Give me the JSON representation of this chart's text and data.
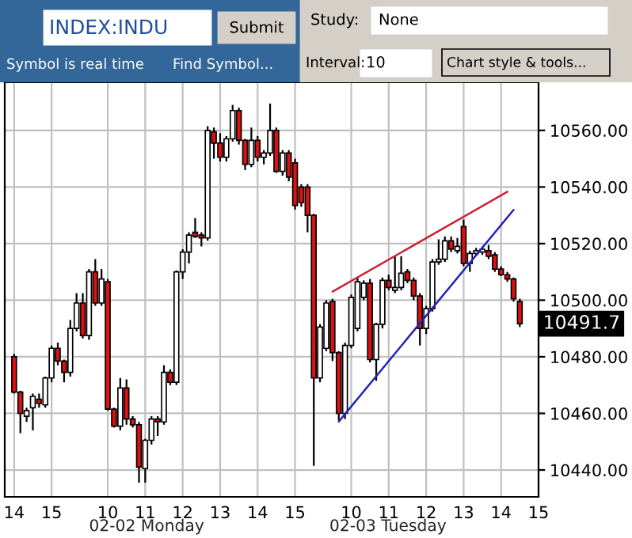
{
  "chart_data": {
    "type": "candlestick",
    "categories": [
      "14",
      null,
      null,
      null,
      null,
      null,
      "15",
      null,
      null,
      null,
      null,
      null,
      null,
      null,
      null,
      "10",
      null,
      null,
      null,
      null,
      null,
      "11",
      null,
      null,
      null,
      null,
      null,
      "12",
      null,
      null,
      null,
      null,
      null,
      "13",
      null,
      null,
      null,
      null,
      null,
      "14",
      null,
      null,
      null,
      null,
      null,
      "15",
      null,
      null,
      null,
      null,
      null,
      null,
      null,
      null,
      "10",
      null,
      null,
      null,
      null,
      null,
      "11",
      null,
      null,
      null,
      null,
      null,
      "12",
      null,
      null,
      null,
      null,
      null,
      "13",
      null,
      null,
      null,
      null,
      null,
      "14",
      null,
      null,
      null,
      null,
      null,
      "15"
    ],
    "ohlc": [
      [
        10480,
        10481,
        10467,
        10467.5
      ],
      [
        10467.5,
        10468,
        10453,
        10460
      ],
      [
        10459,
        10462,
        10457,
        10461
      ],
      [
        10462,
        10467,
        10454,
        10466
      ],
      [
        10465,
        10467,
        10462,
        10463.5
      ],
      [
        10463,
        10473,
        10462,
        10472.5
      ],
      [
        10472.5,
        10484,
        10471,
        10483
      ],
      [
        10483,
        10485,
        10477,
        10478.5
      ],
      [
        10478.5,
        10479,
        10471,
        10474.5
      ],
      [
        10474.5,
        10493,
        10473,
        10490
      ],
      [
        10490,
        10502.5,
        10489,
        10499
      ],
      [
        10499,
        10502.5,
        10486.5,
        10487.5
      ],
      [
        10487.5,
        10511,
        10486,
        10510
      ],
      [
        10510,
        10514.5,
        10498,
        10499
      ],
      [
        10499,
        10511,
        10498,
        10507.5
      ],
      [
        10506.5,
        10507.5,
        10461,
        10461.5
      ],
      [
        10461.5,
        10462,
        10455,
        10455.5
      ],
      [
        10455.5,
        10472.5,
        10454,
        10469
      ],
      [
        10469,
        10472,
        10456,
        10458
      ],
      [
        10458,
        10459,
        10455,
        10456
      ],
      [
        10456,
        10457,
        10435.5,
        10441
      ],
      [
        10440.5,
        10451,
        10435.5,
        10450.5
      ],
      [
        10450.5,
        10459,
        10449,
        10458
      ],
      [
        10458,
        10459,
        10452,
        10457
      ],
      [
        10457,
        10477,
        10456,
        10474.5
      ],
      [
        10474.5,
        10475.5,
        10470,
        10471
      ],
      [
        10471,
        10510.5,
        10470,
        10510
      ],
      [
        10510,
        10518,
        10507.5,
        10517
      ],
      [
        10517,
        10524,
        10513,
        10523
      ],
      [
        10524,
        10529,
        10522,
        10522.5
      ],
      [
        10523,
        10524,
        10519,
        10522
      ],
      [
        10522,
        10561.5,
        10521,
        10560
      ],
      [
        10559.5,
        10561,
        10550,
        10555.5
      ],
      [
        10555.5,
        10559,
        10549,
        10550.5
      ],
      [
        10550.5,
        10558,
        10549,
        10557
      ],
      [
        10557,
        10569,
        10556,
        10567
      ],
      [
        10567,
        10568,
        10555,
        10556.5
      ],
      [
        10556.5,
        10557,
        10546,
        10548
      ],
      [
        10548,
        10561,
        10547,
        10556.5
      ],
      [
        10556.5,
        10558,
        10549,
        10550.5
      ],
      [
        10550.5,
        10553,
        10548,
        10552
      ],
      [
        10552,
        10569.5,
        10551,
        10560
      ],
      [
        10560,
        10561,
        10545,
        10545.5
      ],
      [
        10545.5,
        10553,
        10544,
        10552
      ],
      [
        10552,
        10553,
        10542,
        10543.5
      ],
      [
        10548.5,
        10550,
        10532,
        10533.5
      ],
      [
        10540,
        10541,
        10533,
        10534.5
      ],
      [
        10540,
        10541,
        10524,
        10530
      ],
      [
        10530,
        10530.5,
        10441.5,
        10472.5
      ],
      [
        10472.5,
        10491.5,
        10471,
        10490.5
      ],
      [
        10483,
        10500,
        10482,
        10499
      ],
      [
        10499.5,
        10500.5,
        10478.5,
        10481.5
      ],
      [
        10481.5,
        10482,
        10457.5,
        10460
      ],
      [
        10460,
        10485,
        10458,
        10484
      ],
      [
        10484,
        10502,
        10483,
        10501
      ],
      [
        10490,
        10508,
        10489,
        10506.5
      ],
      [
        10501,
        10507,
        10500,
        10506
      ],
      [
        10506,
        10507.5,
        10478,
        10479
      ],
      [
        10479,
        10492,
        10471.5,
        10491.5
      ],
      [
        10491.5,
        10508,
        10490,
        10507
      ],
      [
        10507,
        10509,
        10503.5,
        10504.5
      ],
      [
        10503.5,
        10515.5,
        10502.5,
        10504.5
      ],
      [
        10504.5,
        10515.5,
        10503.5,
        10509.5
      ],
      [
        10510,
        10511,
        10506,
        10507
      ],
      [
        10507,
        10508,
        10500,
        10501.5
      ],
      [
        10501.5,
        10502.5,
        10484,
        10490
      ],
      [
        10490,
        10498,
        10488,
        10497
      ],
      [
        10497,
        10514.5,
        10496,
        10513.5
      ],
      [
        10513.5,
        10521.5,
        10512.5,
        10514.5
      ],
      [
        10514.5,
        10522.5,
        10513.5,
        10521
      ],
      [
        10521,
        10522.5,
        10517,
        10518
      ],
      [
        10517.5,
        10522,
        10516.5,
        10519
      ],
      [
        10526,
        10528.5,
        10512,
        10513
      ],
      [
        10513,
        10517.5,
        10510,
        10516.5
      ],
      [
        10516.5,
        10518.5,
        10515.5,
        10517.5
      ],
      [
        10517,
        10519,
        10516,
        10518
      ],
      [
        10517.5,
        10519.5,
        10514.5,
        10515.5
      ],
      [
        10516,
        10517,
        10510,
        10511
      ],
      [
        10511,
        10512,
        10508.5,
        10509
      ],
      [
        10509,
        10510,
        10506.5,
        10507.5
      ],
      [
        10507.5,
        10508,
        10499.5,
        10500.5
      ],
      [
        10499.5,
        10500.5,
        10490.5,
        10491.7
      ],
      null,
      null,
      null
    ],
    "series": [
      {
        "type": "line",
        "color": "#cc2233",
        "values": [
          null,
          null,
          null,
          null,
          null,
          null,
          null,
          null,
          null,
          null,
          null,
          null,
          null,
          null,
          null,
          null,
          null,
          null,
          null,
          null,
          null,
          null,
          null,
          null,
          null,
          null,
          null,
          null,
          null,
          null,
          null,
          null,
          null,
          null,
          null,
          null,
          null,
          null,
          null,
          null,
          null,
          null,
          null,
          null,
          null,
          null,
          null,
          null,
          null,
          null,
          null,
          10503,
          null,
          null,
          null,
          null,
          null,
          null,
          null,
          null,
          null,
          null,
          null,
          null,
          null,
          null,
          null,
          null,
          null,
          null,
          null,
          null,
          null,
          null,
          null,
          null,
          null,
          null,
          null,
          10538.3,
          null,
          null,
          null,
          null,
          null
        ]
      },
      {
        "type": "line",
        "color": "#2222bb",
        "values": [
          null,
          null,
          null,
          null,
          null,
          null,
          null,
          null,
          null,
          null,
          null,
          null,
          null,
          null,
          null,
          null,
          null,
          null,
          null,
          null,
          null,
          null,
          null,
          null,
          null,
          null,
          null,
          null,
          null,
          null,
          null,
          null,
          null,
          null,
          null,
          null,
          null,
          null,
          null,
          null,
          null,
          null,
          null,
          null,
          null,
          null,
          null,
          null,
          null,
          null,
          null,
          null,
          10457.1,
          null,
          null,
          null,
          null,
          null,
          null,
          null,
          null,
          null,
          null,
          null,
          null,
          null,
          null,
          null,
          null,
          null,
          null,
          null,
          null,
          null,
          null,
          null,
          null,
          null,
          null,
          null,
          10531.9,
          null,
          null,
          null,
          null
        ]
      }
    ],
    "ylim": [
      10430.5,
      10577
    ],
    "yticks": [
      {
        "value": 10440,
        "label": "10440.00"
      },
      {
        "value": 10460,
        "label": "10460.00"
      },
      {
        "value": 10480,
        "label": "10480.00"
      },
      {
        "value": 10500,
        "label": "10500.00"
      },
      {
        "value": 10520,
        "label": "10520.00"
      },
      {
        "value": 10540,
        "label": "10540.00"
      },
      {
        "value": 10560,
        "label": "10560.00"
      }
    ],
    "grid": true,
    "annotations": [
      "INDEX:INDU",
      "Submit",
      "Symbol is real time",
      "Find Symbol...",
      "Study:",
      "None",
      "Interval:",
      "10",
      "Chart style & tools...",
      "02-02 Monday",
      "02-03 Tuesday",
      "10491.7"
    ]
  }
}
